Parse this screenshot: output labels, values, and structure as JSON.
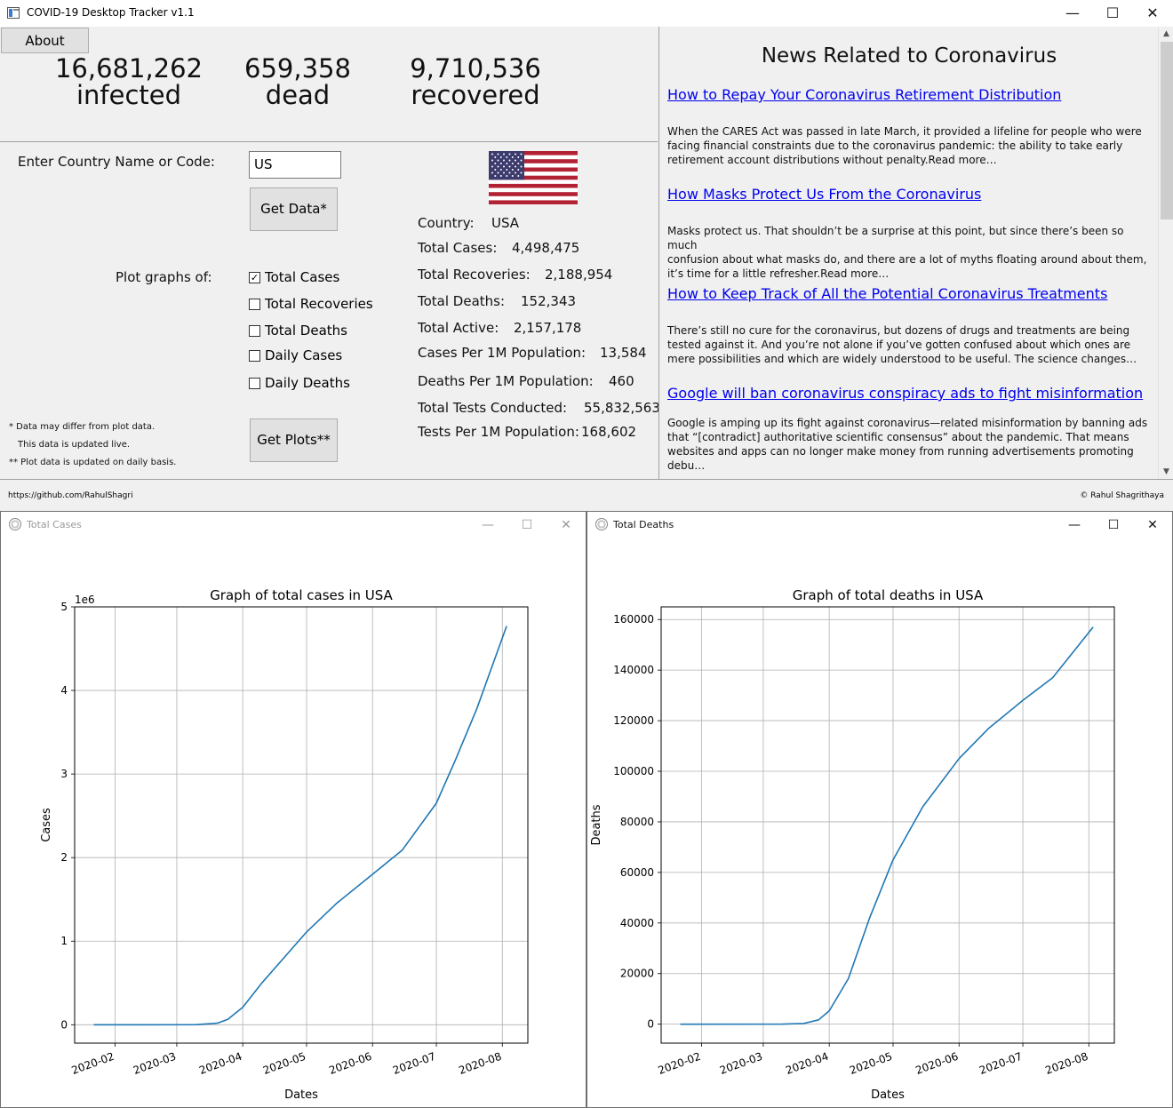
{
  "main_window": {
    "title": "COVID-19 Desktop Tracker v1.1",
    "controls": {
      "minimize": "—",
      "maximize": "☐",
      "close": "✕"
    }
  },
  "about_button": "About",
  "global_stats": {
    "infected_value": "16,681,262",
    "infected_label": "infected",
    "dead_value": "659,358",
    "dead_label": "dead",
    "recovered_value": "9,710,536",
    "recovered_label": "recovered"
  },
  "search": {
    "label": "Enter Country Name or Code:",
    "value": "US",
    "get_data_button": "Get Data*"
  },
  "plot_options": {
    "label": "Plot graphs of:",
    "items": [
      {
        "label": "Total Cases",
        "checked": true
      },
      {
        "label": "Total Recoveries",
        "checked": false
      },
      {
        "label": "Total Deaths",
        "checked": false
      },
      {
        "label": "Daily Cases",
        "checked": false
      },
      {
        "label": "Daily Deaths",
        "checked": false
      }
    ],
    "get_plots_button": "Get Plots**"
  },
  "notes": {
    "line1": "*  Data may differ from plot data.",
    "line2": "This data is updated live.",
    "line3": "** Plot data is updated on daily basis."
  },
  "country_info": {
    "flag_icon": "us-flag-icon",
    "rows": [
      {
        "label": "Country:",
        "value": "USA"
      },
      {
        "label": "Total Cases:",
        "value": "4,498,475"
      },
      {
        "label": "Total Recoveries:",
        "value": "2,188,954"
      },
      {
        "label": "Total Deaths:",
        "value": "152,343"
      },
      {
        "label": "Total Active:",
        "value": "2,157,178"
      },
      {
        "label": "Cases Per 1M Population:",
        "value": "13,584"
      },
      {
        "label": "Deaths Per 1M Population:",
        "value": "460"
      },
      {
        "label": "Total Tests Conducted:",
        "value": "55,832,563"
      },
      {
        "label": "Tests Per 1M Population:",
        "value": "168,602"
      }
    ]
  },
  "news": {
    "heading": "News Related to Coronavirus",
    "articles": [
      {
        "title": "How to Repay Your Coronavirus Retirement Distribution",
        "lines": [
          "When the CARES Act was passed in late March, it provided a lifeline for people who were",
          "facing financial constraints due to the coronavirus pandemic: the ability to take early",
          "retirement account distributions without penalty.Read more…"
        ]
      },
      {
        "title": "How Masks Protect Us From the Coronavirus",
        "lines": [
          "Masks protect us. That shouldn’t be a surprise at this point, but since there’s been so much",
          "confusion about what masks do, and there are a lot of myths floating around about them,",
          "it’s time for a little refresher.Read more…"
        ]
      },
      {
        "title": "How to Keep Track of All the Potential Coronavirus Treatments",
        "lines": [
          "There’s still no cure for the coronavirus, but dozens of drugs and treatments are being",
          "tested against it. And you’re not alone if you’ve gotten confused about which ones are",
          "mere possibilities and which are widely understood to be useful. The science changes…"
        ]
      },
      {
        "title": "Google will ban coronavirus conspiracy ads to fight misinformation",
        "lines": [
          "Google is amping up its fight against coronavirus—related misinformation by banning ads",
          "that “[contradict] authoritative scientific consensus” about the pandemic. That means",
          "websites and apps can no longer make money from running advertisements promoting",
          "debu…"
        ]
      }
    ]
  },
  "footer": {
    "left": "https://github.com/RahulShagri",
    "right": "© Rahul Shagrithaya"
  },
  "plot_windows": {
    "cases": {
      "title": "Total Cases"
    },
    "deaths": {
      "title": "Total Deaths"
    },
    "controls": {
      "minimize": "—",
      "maximize": "☐",
      "close": "✕"
    }
  },
  "chart_data": [
    {
      "type": "line",
      "title": "Graph of total cases in USA",
      "xlabel": "Dates",
      "ylabel": "Cases",
      "y_multiplier_label": "1e6",
      "x_ticks": [
        "2020-02",
        "2020-03",
        "2020-04",
        "2020-05",
        "2020-06",
        "2020-07",
        "2020-08"
      ],
      "y_ticks": [
        "0",
        "1",
        "2",
        "3",
        "4",
        "5"
      ],
      "xlim": [
        "2020-01-13",
        "2020-08-13"
      ],
      "ylim": [
        -0.22,
        5.0
      ],
      "grid": true,
      "color": "#1f77b4",
      "x": [
        "2020-01-22",
        "2020-02-15",
        "2020-03-10",
        "2020-03-20",
        "2020-03-25",
        "2020-04-01",
        "2020-04-10",
        "2020-04-20",
        "2020-05-01",
        "2020-05-15",
        "2020-06-01",
        "2020-06-15",
        "2020-07-01",
        "2020-07-10",
        "2020-07-20",
        "2020-08-03"
      ],
      "y": [
        0,
        0.0001,
        0.001,
        0.018,
        0.065,
        0.21,
        0.5,
        0.79,
        1.11,
        1.45,
        1.8,
        2.09,
        2.65,
        3.17,
        3.78,
        4.77
      ]
    },
    {
      "type": "line",
      "title": "Graph of total deaths in USA",
      "xlabel": "Dates",
      "ylabel": "Deaths",
      "x_ticks": [
        "2020-02",
        "2020-03",
        "2020-04",
        "2020-05",
        "2020-06",
        "2020-07",
        "2020-08"
      ],
      "y_ticks": [
        "0",
        "20000",
        "40000",
        "60000",
        "80000",
        "100000",
        "120000",
        "140000",
        "160000"
      ],
      "xlim": [
        "2020-01-13",
        "2020-08-13"
      ],
      "ylim": [
        -7500,
        165000
      ],
      "grid": true,
      "color": "#1f77b4",
      "x": [
        "2020-01-22",
        "2020-03-10",
        "2020-03-20",
        "2020-03-27",
        "2020-04-01",
        "2020-04-10",
        "2020-04-20",
        "2020-05-01",
        "2020-05-15",
        "2020-06-01",
        "2020-06-15",
        "2020-07-01",
        "2020-07-15",
        "2020-08-03"
      ],
      "y": [
        0,
        30,
        250,
        1700,
        5300,
        18000,
        42000,
        65000,
        86000,
        105000,
        117000,
        128000,
        137000,
        157000
      ]
    }
  ]
}
